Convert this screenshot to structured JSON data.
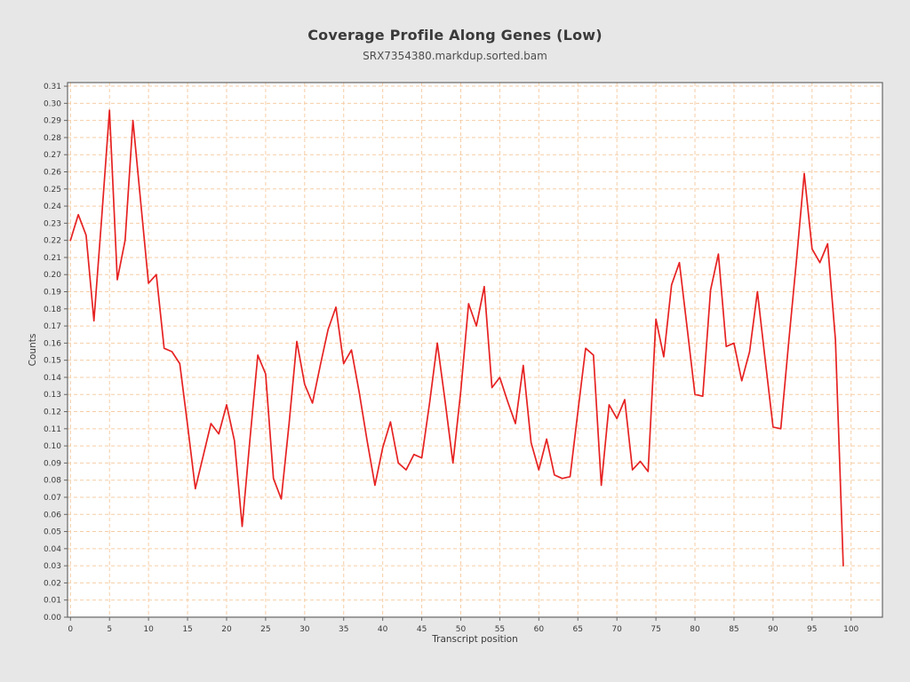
{
  "chart_data": {
    "type": "line",
    "title": "Coverage Profile Along Genes (Low)",
    "subtitle": "SRX7354380.markdup.sorted.bam",
    "xlabel": "Transcript position",
    "ylabel": "Counts",
    "x": [
      0,
      1,
      2,
      3,
      4,
      5,
      6,
      7,
      8,
      9,
      10,
      11,
      12,
      13,
      14,
      15,
      16,
      17,
      18,
      19,
      20,
      21,
      22,
      23,
      24,
      25,
      26,
      27,
      28,
      29,
      30,
      31,
      32,
      33,
      34,
      35,
      36,
      37,
      38,
      39,
      40,
      41,
      42,
      43,
      44,
      45,
      46,
      47,
      48,
      49,
      50,
      51,
      52,
      53,
      54,
      55,
      56,
      57,
      58,
      59,
      60,
      61,
      62,
      63,
      64,
      65,
      66,
      67,
      68,
      69,
      70,
      71,
      72,
      73,
      74,
      75,
      76,
      77,
      78,
      79,
      80,
      81,
      82,
      83,
      84,
      85,
      86,
      87,
      88,
      89,
      90,
      91,
      92,
      93,
      94,
      95,
      96,
      97,
      98,
      99
    ],
    "values": [
      0.22,
      0.235,
      0.223,
      0.173,
      0.233,
      0.296,
      0.197,
      0.22,
      0.29,
      0.242,
      0.195,
      0.2,
      0.157,
      0.155,
      0.148,
      0.112,
      0.075,
      0.094,
      0.113,
      0.107,
      0.124,
      0.103,
      0.053,
      0.104,
      0.153,
      0.142,
      0.081,
      0.069,
      0.113,
      0.161,
      0.136,
      0.125,
      0.147,
      0.168,
      0.181,
      0.148,
      0.156,
      0.131,
      0.103,
      0.077,
      0.099,
      0.114,
      0.09,
      0.086,
      0.095,
      0.093,
      0.125,
      0.16,
      0.126,
      0.09,
      0.132,
      0.183,
      0.17,
      0.193,
      0.134,
      0.14,
      0.126,
      0.113,
      0.147,
      0.102,
      0.086,
      0.104,
      0.083,
      0.081,
      0.082,
      0.12,
      0.157,
      0.153,
      0.077,
      0.124,
      0.116,
      0.127,
      0.086,
      0.091,
      0.085,
      0.174,
      0.152,
      0.194,
      0.207,
      0.169,
      0.13,
      0.129,
      0.191,
      0.212,
      0.158,
      0.16,
      0.138,
      0.155,
      0.19,
      0.15,
      0.111,
      0.11,
      0.16,
      0.208,
      0.259,
      0.215,
      0.207,
      0.218,
      0.162,
      0.03
    ],
    "x_ticks": [
      0,
      5,
      10,
      15,
      20,
      25,
      30,
      35,
      40,
      45,
      50,
      55,
      60,
      65,
      70,
      75,
      80,
      85,
      90,
      95,
      100
    ],
    "y_ticks": [
      "0.00",
      "0.01",
      "0.02",
      "0.03",
      "0.04",
      "0.05",
      "0.06",
      "0.07",
      "0.08",
      "0.09",
      "0.10",
      "0.11",
      "0.12",
      "0.13",
      "0.14",
      "0.15",
      "0.16",
      "0.17",
      "0.18",
      "0.19",
      "0.20",
      "0.21",
      "0.22",
      "0.23",
      "0.24",
      "0.25",
      "0.26",
      "0.27",
      "0.28",
      "0.29",
      "0.30",
      "0.31"
    ],
    "y_tick_step": 0.01,
    "ylim": [
      0,
      0.3121
    ],
    "xlim": [
      -0.4,
      104.0
    ],
    "grid": true,
    "legend": "none",
    "line_color": "#e62222",
    "grid_color": "#f6cda5",
    "frame_color": "#666666",
    "tick_color": "#666666",
    "background_color": "#e7e7e7",
    "plot_background": "#ffffff",
    "text_color": "#3a3a3a"
  }
}
